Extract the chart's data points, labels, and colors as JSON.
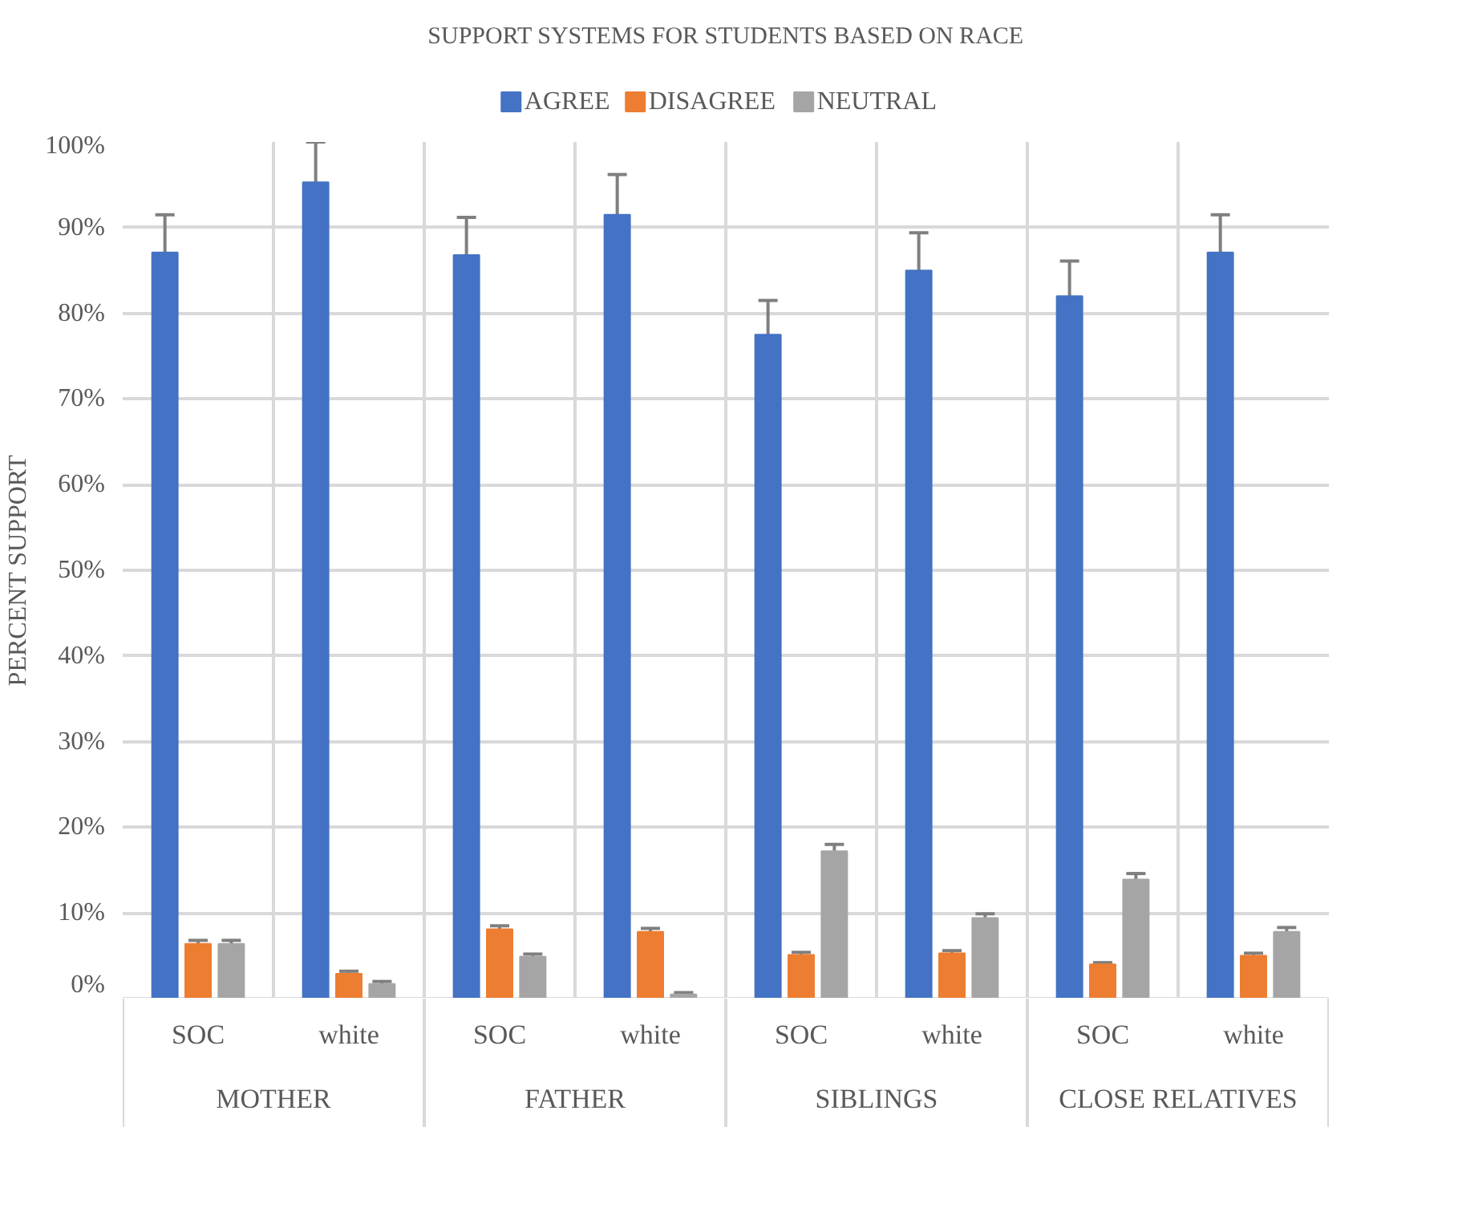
{
  "chart_data": {
    "type": "bar",
    "title": "SUPPORT SYSTEMS FOR STUDENTS BASED ON RACE",
    "ylabel": "PERCENT SUPPORT",
    "categories": [
      "SOC",
      "white",
      "SOC",
      "white",
      "SOC",
      "white",
      "SOC",
      "white"
    ],
    "annotations": [
      "MOTHER",
      "FATHER",
      "SIBLINGS",
      "CLOSE RELATIVES"
    ],
    "series": [
      {
        "name": "AGREE",
        "color": "#4472c4",
        "values": [
          87.1,
          95.3,
          86.8,
          91.5,
          77.5,
          85.0,
          82.0,
          87.1
        ],
        "errors": [
          4.4,
          4.7,
          4.4,
          4.7,
          4.0,
          4.4,
          4.1,
          4.4
        ]
      },
      {
        "name": "DISAGREE",
        "color": "#ed7d31",
        "values": [
          6.4,
          2.9,
          8.1,
          7.8,
          5.1,
          5.3,
          4.0,
          5.0
        ],
        "errors": [
          0.4,
          0.3,
          0.4,
          0.4,
          0.3,
          0.3,
          0.2,
          0.3
        ]
      },
      {
        "name": "NEUTRAL",
        "color": "#a5a5a5",
        "values": [
          6.4,
          1.7,
          4.9,
          0.5,
          17.2,
          9.4,
          13.9,
          7.8
        ],
        "errors": [
          0.4,
          0.3,
          0.3,
          0.2,
          0.8,
          0.5,
          0.7,
          0.5
        ]
      }
    ],
    "ylim": [
      0,
      100
    ],
    "yticks": [
      {
        "value": 0,
        "label": "0%"
      },
      {
        "value": 10,
        "label": "10%"
      },
      {
        "value": 20,
        "label": "20%"
      },
      {
        "value": 30,
        "label": "30%"
      },
      {
        "value": 40,
        "label": "40%"
      },
      {
        "value": 50,
        "label": "50%"
      },
      {
        "value": 60,
        "label": "60%"
      },
      {
        "value": 70,
        "label": "70%"
      },
      {
        "value": 80,
        "label": "80%"
      },
      {
        "value": 90,
        "label": "90%"
      },
      {
        "value": 100,
        "label": "100%"
      }
    ],
    "grid": true,
    "legend": "top"
  }
}
